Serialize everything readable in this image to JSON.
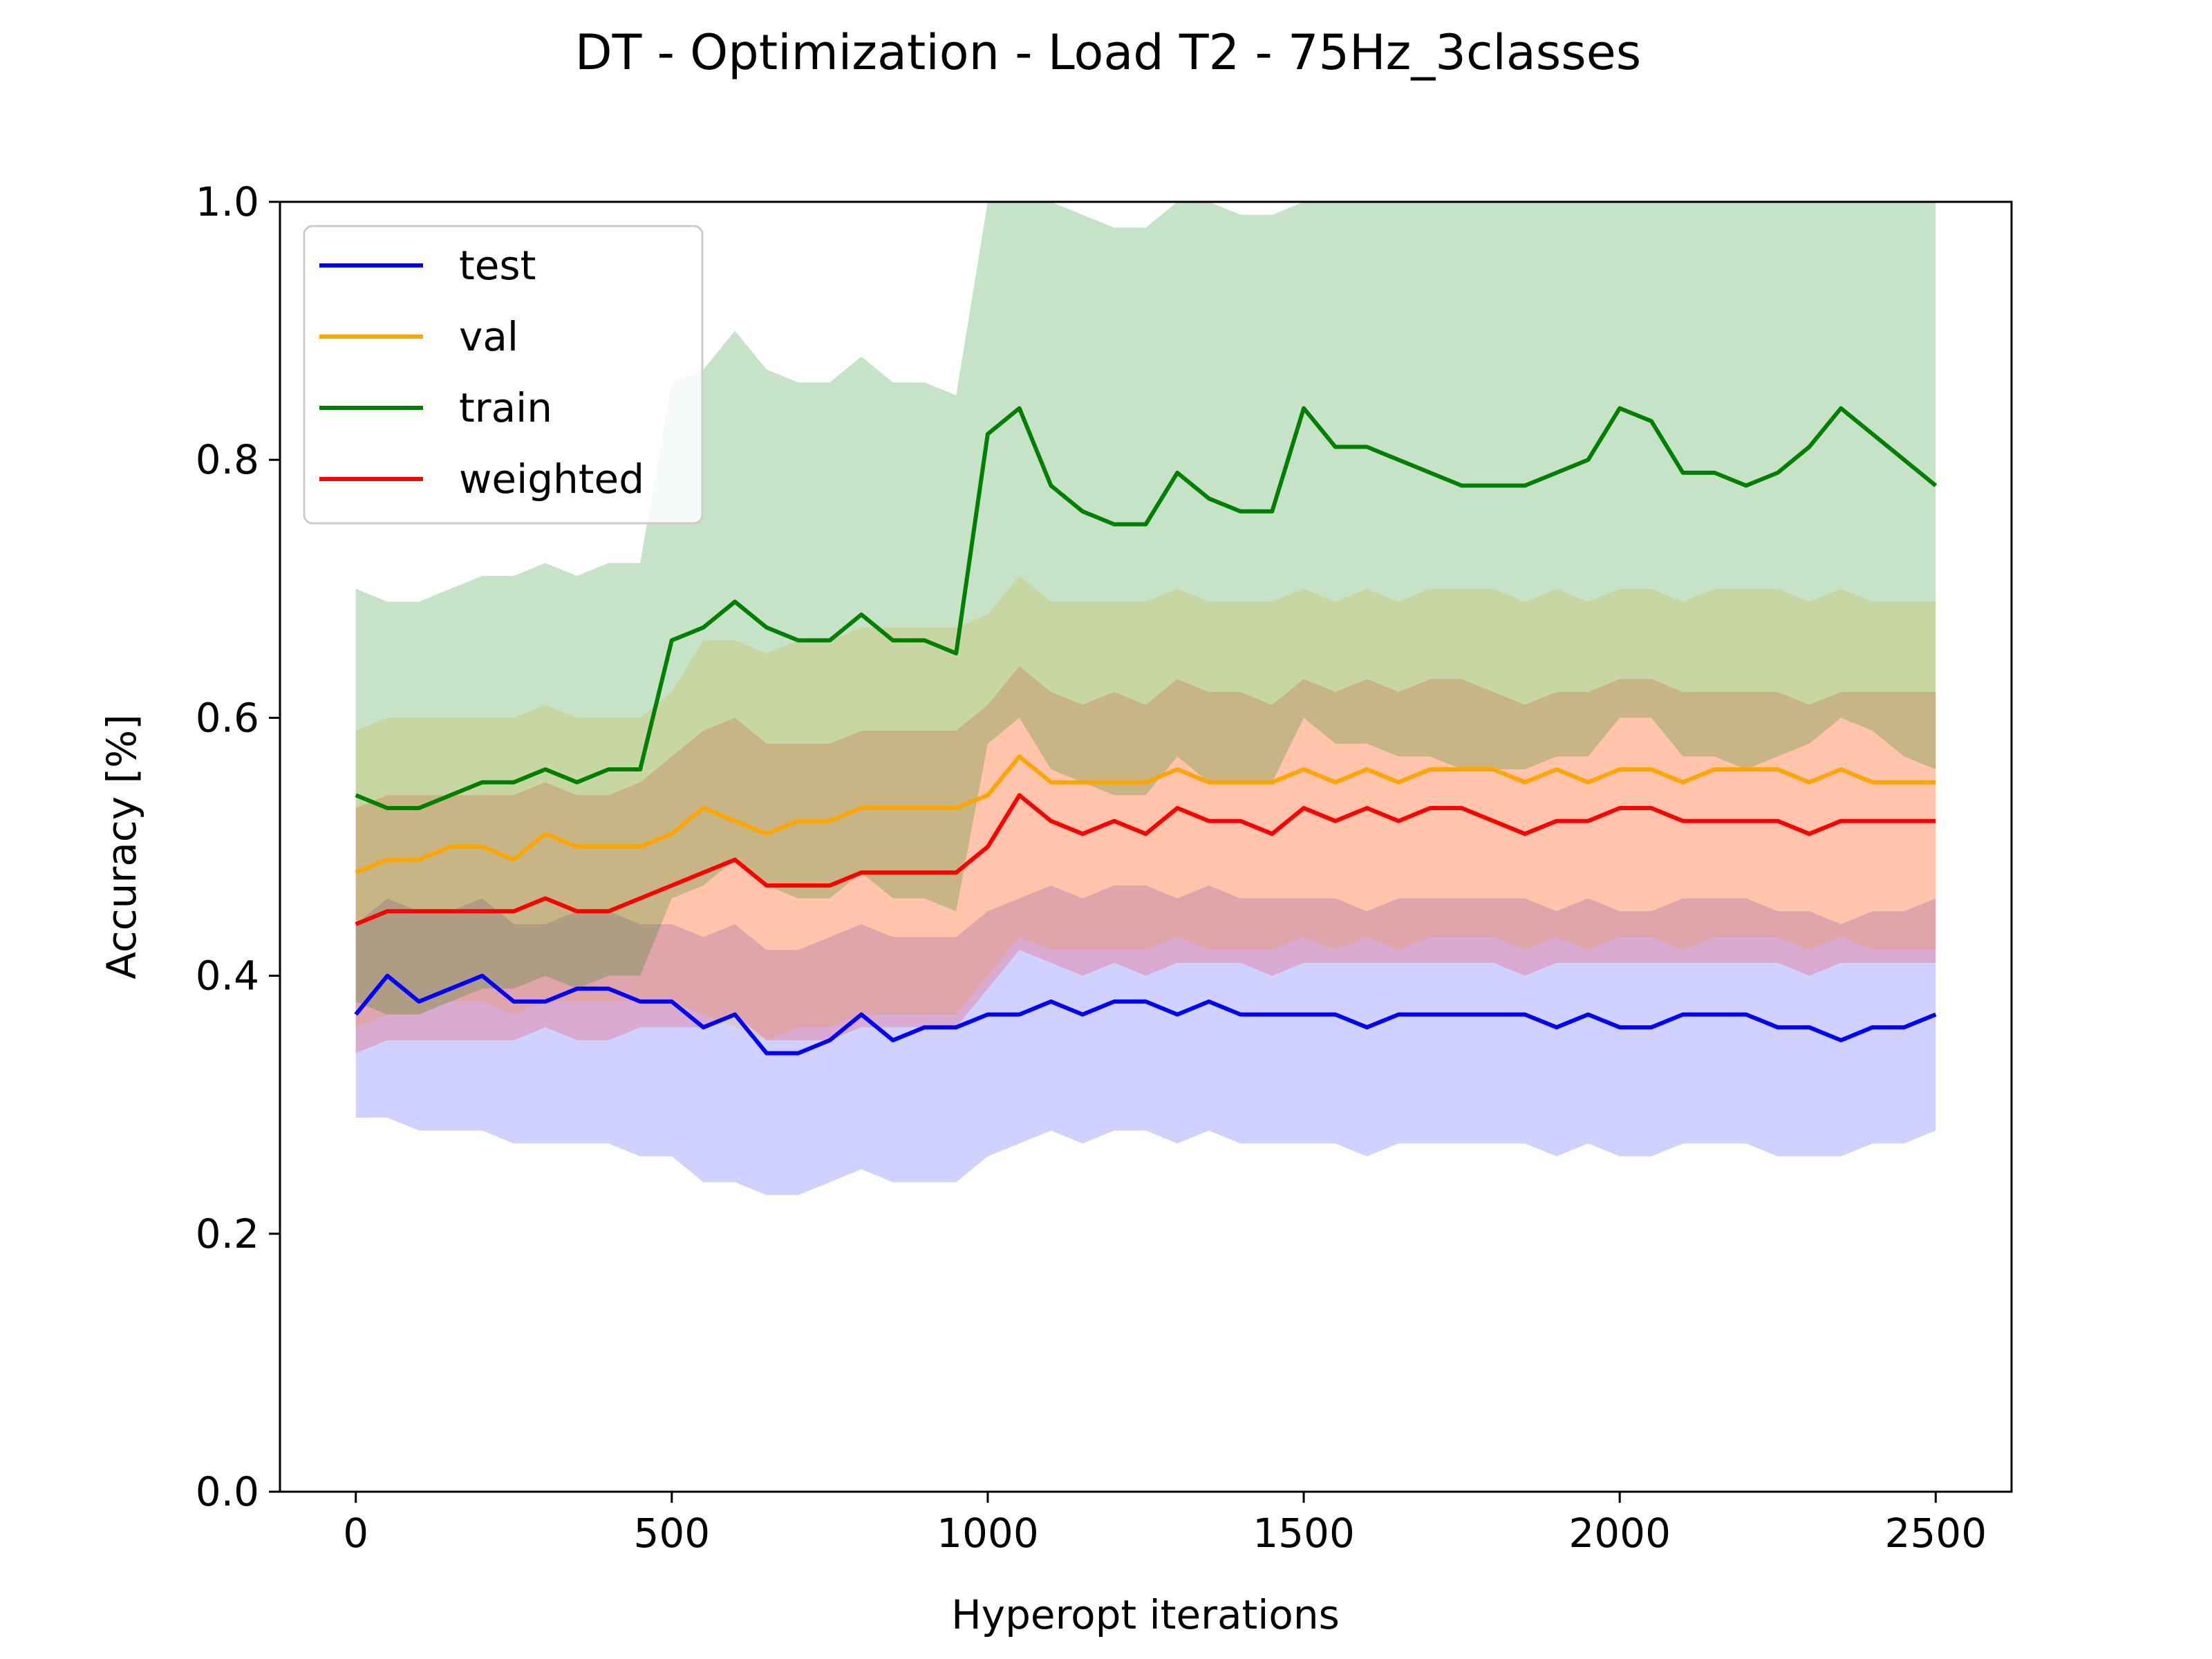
{
  "figure": {
    "background": "#ffffff"
  },
  "chart_data": {
    "type": "line",
    "title": "DT - Optimization - Load T2 - 75Hz_3classes",
    "xlabel": "Hyperopt iterations",
    "ylabel": "Accuracy [%]",
    "xlim": [
      -120,
      2620
    ],
    "ylim": [
      0.0,
      1.0
    ],
    "xticks": [
      0,
      500,
      1000,
      1500,
      2000,
      2500
    ],
    "xtick_labels": [
      "0",
      "500",
      "1000",
      "1500",
      "2000",
      "2500"
    ],
    "yticks": [
      0.0,
      0.2,
      0.4,
      0.6,
      0.8,
      1.0
    ],
    "ytick_labels": [
      "0.0",
      "0.2",
      "0.4",
      "0.6",
      "0.8",
      "1.0"
    ],
    "grid": false,
    "legend": {
      "position": "top-left",
      "entries": [
        "test",
        "val",
        "train",
        "weighted"
      ]
    },
    "series": [
      {
        "name": "test",
        "color": "#0000ff",
        "x": [
          0,
          50,
          100,
          150,
          200,
          250,
          300,
          350,
          400,
          450,
          500,
          550,
          600,
          650,
          700,
          750,
          800,
          850,
          900,
          950,
          1000,
          1050,
          1100,
          1150,
          1200,
          1250,
          1300,
          1350,
          1400,
          1450,
          1500,
          1550,
          1600,
          1650,
          1700,
          1750,
          1800,
          1850,
          1900,
          1950,
          2000,
          2050,
          2100,
          2150,
          2200,
          2250,
          2300,
          2350,
          2400,
          2450,
          2500
        ],
        "values": [
          0.37,
          0.4,
          0.38,
          0.39,
          0.4,
          0.38,
          0.38,
          0.39,
          0.39,
          0.38,
          0.38,
          0.36,
          0.37,
          0.34,
          0.34,
          0.35,
          0.37,
          0.35,
          0.36,
          0.36,
          0.37,
          0.37,
          0.38,
          0.37,
          0.38,
          0.38,
          0.37,
          0.38,
          0.37,
          0.37,
          0.37,
          0.37,
          0.36,
          0.37,
          0.37,
          0.37,
          0.37,
          0.37,
          0.36,
          0.37,
          0.36,
          0.36,
          0.37,
          0.37,
          0.37,
          0.36,
          0.36,
          0.35,
          0.36,
          0.36,
          0.37
        ],
        "band_low": [
          0.29,
          0.29,
          0.28,
          0.28,
          0.28,
          0.27,
          0.27,
          0.27,
          0.27,
          0.26,
          0.26,
          0.24,
          0.24,
          0.23,
          0.23,
          0.24,
          0.25,
          0.24,
          0.24,
          0.24,
          0.26,
          0.27,
          0.28,
          0.27,
          0.28,
          0.28,
          0.27,
          0.28,
          0.27,
          0.27,
          0.27,
          0.27,
          0.26,
          0.27,
          0.27,
          0.27,
          0.27,
          0.27,
          0.26,
          0.27,
          0.26,
          0.26,
          0.27,
          0.27,
          0.27,
          0.26,
          0.26,
          0.26,
          0.27,
          0.27,
          0.28
        ],
        "band_high": [
          0.44,
          0.46,
          0.45,
          0.45,
          0.46,
          0.44,
          0.44,
          0.45,
          0.45,
          0.44,
          0.44,
          0.43,
          0.44,
          0.42,
          0.42,
          0.43,
          0.44,
          0.43,
          0.43,
          0.43,
          0.45,
          0.46,
          0.47,
          0.46,
          0.47,
          0.47,
          0.46,
          0.47,
          0.46,
          0.46,
          0.46,
          0.46,
          0.45,
          0.46,
          0.46,
          0.46,
          0.46,
          0.46,
          0.45,
          0.46,
          0.45,
          0.45,
          0.46,
          0.46,
          0.46,
          0.45,
          0.45,
          0.44,
          0.45,
          0.45,
          0.46
        ]
      },
      {
        "name": "val",
        "color": "#ffa500",
        "x": [
          0,
          50,
          100,
          150,
          200,
          250,
          300,
          350,
          400,
          450,
          500,
          550,
          600,
          650,
          700,
          750,
          800,
          850,
          900,
          950,
          1000,
          1050,
          1100,
          1150,
          1200,
          1250,
          1300,
          1350,
          1400,
          1450,
          1500,
          1550,
          1600,
          1650,
          1700,
          1750,
          1800,
          1850,
          1900,
          1950,
          2000,
          2050,
          2100,
          2150,
          2200,
          2250,
          2300,
          2350,
          2400,
          2450,
          2500
        ],
        "values": [
          0.48,
          0.49,
          0.49,
          0.5,
          0.5,
          0.49,
          0.51,
          0.5,
          0.5,
          0.5,
          0.51,
          0.53,
          0.52,
          0.51,
          0.52,
          0.52,
          0.53,
          0.53,
          0.53,
          0.53,
          0.54,
          0.57,
          0.55,
          0.55,
          0.55,
          0.55,
          0.56,
          0.55,
          0.55,
          0.55,
          0.56,
          0.55,
          0.56,
          0.55,
          0.56,
          0.56,
          0.56,
          0.55,
          0.56,
          0.55,
          0.56,
          0.56,
          0.55,
          0.56,
          0.56,
          0.56,
          0.55,
          0.56,
          0.55,
          0.55,
          0.55
        ],
        "band_low": [
          0.36,
          0.37,
          0.37,
          0.38,
          0.38,
          0.37,
          0.38,
          0.38,
          0.38,
          0.38,
          0.38,
          0.37,
          0.36,
          0.35,
          0.36,
          0.36,
          0.37,
          0.37,
          0.37,
          0.37,
          0.4,
          0.43,
          0.42,
          0.42,
          0.42,
          0.42,
          0.43,
          0.42,
          0.42,
          0.42,
          0.43,
          0.42,
          0.43,
          0.42,
          0.43,
          0.43,
          0.43,
          0.42,
          0.43,
          0.42,
          0.43,
          0.43,
          0.42,
          0.43,
          0.43,
          0.43,
          0.42,
          0.43,
          0.42,
          0.42,
          0.42
        ],
        "band_high": [
          0.59,
          0.6,
          0.6,
          0.6,
          0.6,
          0.6,
          0.61,
          0.6,
          0.6,
          0.6,
          0.62,
          0.66,
          0.66,
          0.65,
          0.66,
          0.66,
          0.67,
          0.67,
          0.67,
          0.67,
          0.68,
          0.71,
          0.69,
          0.69,
          0.69,
          0.69,
          0.7,
          0.69,
          0.69,
          0.69,
          0.7,
          0.69,
          0.7,
          0.69,
          0.7,
          0.7,
          0.7,
          0.69,
          0.7,
          0.69,
          0.7,
          0.7,
          0.69,
          0.7,
          0.7,
          0.7,
          0.69,
          0.7,
          0.69,
          0.69,
          0.69
        ]
      },
      {
        "name": "train",
        "color": "#008000",
        "x": [
          0,
          50,
          100,
          150,
          200,
          250,
          300,
          350,
          400,
          450,
          500,
          550,
          600,
          650,
          700,
          750,
          800,
          850,
          900,
          950,
          1000,
          1050,
          1100,
          1150,
          1200,
          1250,
          1300,
          1350,
          1400,
          1450,
          1500,
          1550,
          1600,
          1650,
          1700,
          1750,
          1800,
          1850,
          1900,
          1950,
          2000,
          2050,
          2100,
          2150,
          2200,
          2250,
          2300,
          2350,
          2400,
          2450,
          2500
        ],
        "values": [
          0.54,
          0.53,
          0.53,
          0.54,
          0.55,
          0.55,
          0.56,
          0.55,
          0.56,
          0.56,
          0.66,
          0.67,
          0.69,
          0.67,
          0.66,
          0.66,
          0.68,
          0.66,
          0.66,
          0.65,
          0.82,
          0.84,
          0.78,
          0.76,
          0.75,
          0.75,
          0.79,
          0.77,
          0.76,
          0.76,
          0.84,
          0.81,
          0.81,
          0.8,
          0.79,
          0.78,
          0.78,
          0.78,
          0.79,
          0.8,
          0.84,
          0.83,
          0.79,
          0.79,
          0.78,
          0.79,
          0.81,
          0.84,
          0.82,
          0.8,
          0.78
        ],
        "band_low": [
          0.38,
          0.37,
          0.37,
          0.38,
          0.39,
          0.39,
          0.4,
          0.39,
          0.4,
          0.4,
          0.46,
          0.47,
          0.49,
          0.47,
          0.46,
          0.46,
          0.48,
          0.46,
          0.46,
          0.45,
          0.58,
          0.6,
          0.56,
          0.55,
          0.54,
          0.54,
          0.57,
          0.55,
          0.55,
          0.55,
          0.6,
          0.58,
          0.58,
          0.57,
          0.57,
          0.56,
          0.56,
          0.56,
          0.57,
          0.57,
          0.6,
          0.6,
          0.57,
          0.57,
          0.56,
          0.57,
          0.58,
          0.6,
          0.59,
          0.57,
          0.56
        ],
        "band_high": [
          0.7,
          0.69,
          0.69,
          0.7,
          0.71,
          0.71,
          0.72,
          0.71,
          0.72,
          0.72,
          0.86,
          0.87,
          0.9,
          0.87,
          0.86,
          0.86,
          0.88,
          0.86,
          0.86,
          0.85,
          1.0,
          1.0,
          1.0,
          0.99,
          0.98,
          0.98,
          1.0,
          1.0,
          0.99,
          0.99,
          1.0,
          1.0,
          1.0,
          1.0,
          1.0,
          1.0,
          1.0,
          1.0,
          1.0,
          1.0,
          1.0,
          1.0,
          1.0,
          1.0,
          1.0,
          1.0,
          1.0,
          1.0,
          1.0,
          1.0,
          1.0
        ]
      },
      {
        "name": "weighted",
        "color": "#ff0000",
        "x": [
          0,
          50,
          100,
          150,
          200,
          250,
          300,
          350,
          400,
          450,
          500,
          550,
          600,
          650,
          700,
          750,
          800,
          850,
          900,
          950,
          1000,
          1050,
          1100,
          1150,
          1200,
          1250,
          1300,
          1350,
          1400,
          1450,
          1500,
          1550,
          1600,
          1650,
          1700,
          1750,
          1800,
          1850,
          1900,
          1950,
          2000,
          2050,
          2100,
          2150,
          2200,
          2250,
          2300,
          2350,
          2400,
          2450,
          2500
        ],
        "values": [
          0.44,
          0.45,
          0.45,
          0.45,
          0.45,
          0.45,
          0.46,
          0.45,
          0.45,
          0.46,
          0.47,
          0.48,
          0.49,
          0.47,
          0.47,
          0.47,
          0.48,
          0.48,
          0.48,
          0.48,
          0.5,
          0.54,
          0.52,
          0.51,
          0.52,
          0.51,
          0.53,
          0.52,
          0.52,
          0.51,
          0.53,
          0.52,
          0.53,
          0.52,
          0.53,
          0.53,
          0.52,
          0.51,
          0.52,
          0.52,
          0.53,
          0.53,
          0.52,
          0.52,
          0.52,
          0.52,
          0.51,
          0.52,
          0.52,
          0.52,
          0.52
        ],
        "band_low": [
          0.34,
          0.35,
          0.35,
          0.35,
          0.35,
          0.35,
          0.36,
          0.35,
          0.35,
          0.36,
          0.36,
          0.36,
          0.37,
          0.35,
          0.35,
          0.35,
          0.36,
          0.36,
          0.36,
          0.36,
          0.39,
          0.42,
          0.41,
          0.4,
          0.41,
          0.4,
          0.41,
          0.41,
          0.41,
          0.4,
          0.41,
          0.41,
          0.41,
          0.41,
          0.41,
          0.41,
          0.41,
          0.4,
          0.41,
          0.41,
          0.41,
          0.41,
          0.41,
          0.41,
          0.41,
          0.41,
          0.4,
          0.41,
          0.41,
          0.41,
          0.41
        ],
        "band_high": [
          0.53,
          0.54,
          0.54,
          0.54,
          0.54,
          0.54,
          0.55,
          0.54,
          0.54,
          0.55,
          0.57,
          0.59,
          0.6,
          0.58,
          0.58,
          0.58,
          0.59,
          0.59,
          0.59,
          0.59,
          0.61,
          0.64,
          0.62,
          0.61,
          0.62,
          0.61,
          0.63,
          0.62,
          0.62,
          0.61,
          0.63,
          0.62,
          0.63,
          0.62,
          0.63,
          0.63,
          0.62,
          0.61,
          0.62,
          0.62,
          0.63,
          0.63,
          0.62,
          0.62,
          0.62,
          0.62,
          0.61,
          0.62,
          0.62,
          0.62,
          0.62
        ]
      }
    ]
  }
}
